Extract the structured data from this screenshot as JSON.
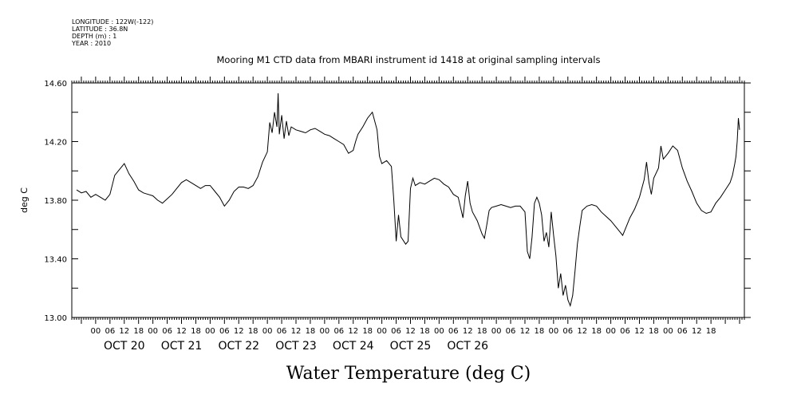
{
  "meta": {
    "longitude": "LONGITUDE : 122W(-122)",
    "latitude": "LATITUDE : 36.8N",
    "depth": "DEPTH (m) : 1",
    "year": "YEAR : 2010"
  },
  "chart_data": {
    "type": "line",
    "title": "Mooring M1 CTD data from MBARI instrument id 1418 at original sampling intervals",
    "xlabel": "Water Temperature (deg C)",
    "ylabel": "deg C",
    "ylim": [
      13.0,
      14.6
    ],
    "xlim": [
      -10,
      272
    ],
    "y_ticks": [
      "13.00",
      "13.40",
      "13.80",
      "14.20",
      "14.60"
    ],
    "x_tick_labels": [
      "00",
      "06",
      "12",
      "18",
      "00",
      "06",
      "12",
      "18",
      "00",
      "06",
      "12",
      "18",
      "00",
      "06",
      "12",
      "18",
      "00",
      "06",
      "12",
      "18",
      "00",
      "06",
      "12",
      "18",
      "00",
      "06",
      "12",
      "18",
      "00",
      "06",
      "12",
      "18",
      "00",
      "06",
      "12",
      "18",
      "00",
      "06",
      "12",
      "18",
      "00",
      "06",
      "12",
      "18"
    ],
    "x_tick_hours": [
      0,
      6,
      12,
      18,
      24,
      30,
      36,
      42,
      48,
      54,
      60,
      66,
      72,
      78,
      84,
      90,
      96,
      102,
      108,
      114,
      120,
      126,
      132,
      138,
      144,
      150,
      156,
      162,
      168,
      174,
      180,
      186,
      192,
      198,
      204,
      210,
      216,
      222,
      228,
      234,
      240,
      246,
      252,
      258
    ],
    "dates": [
      "OCT 20",
      "OCT 21",
      "OCT 22",
      "OCT 23",
      "OCT 24",
      "OCT 25",
      "OCT 26"
    ],
    "x_unit": "hours since OCT 20 00:00",
    "series": [
      {
        "name": "",
        "points": [
          [
            -8,
            13.87
          ],
          [
            -6,
            13.85
          ],
          [
            -4,
            13.86
          ],
          [
            -2,
            13.82
          ],
          [
            0,
            13.84
          ],
          [
            2,
            13.82
          ],
          [
            4,
            13.8
          ],
          [
            6,
            13.84
          ],
          [
            8,
            13.97
          ],
          [
            10,
            14.01
          ],
          [
            12,
            14.05
          ],
          [
            14,
            13.98
          ],
          [
            16,
            13.93
          ],
          [
            18,
            13.87
          ],
          [
            20,
            13.85
          ],
          [
            22,
            13.84
          ],
          [
            24,
            13.83
          ],
          [
            26,
            13.8
          ],
          [
            28,
            13.78
          ],
          [
            30,
            13.81
          ],
          [
            32,
            13.84
          ],
          [
            34,
            13.88
          ],
          [
            36,
            13.92
          ],
          [
            38,
            13.94
          ],
          [
            40,
            13.92
          ],
          [
            42,
            13.9
          ],
          [
            44,
            13.88
          ],
          [
            46,
            13.9
          ],
          [
            48,
            13.9
          ],
          [
            50,
            13.86
          ],
          [
            52,
            13.82
          ],
          [
            54,
            13.76
          ],
          [
            56,
            13.8
          ],
          [
            58,
            13.86
          ],
          [
            60,
            13.89
          ],
          [
            62,
            13.89
          ],
          [
            64,
            13.88
          ],
          [
            66,
            13.9
          ],
          [
            68,
            13.96
          ],
          [
            70,
            14.06
          ],
          [
            72,
            14.13
          ],
          [
            73,
            14.33
          ],
          [
            74,
            14.26
          ],
          [
            75,
            14.4
          ],
          [
            76,
            14.3
          ],
          [
            76.5,
            14.53
          ],
          [
            77,
            14.25
          ],
          [
            78,
            14.38
          ],
          [
            79,
            14.22
          ],
          [
            80,
            14.34
          ],
          [
            81,
            14.24
          ],
          [
            82,
            14.3
          ],
          [
            84,
            14.28
          ],
          [
            86,
            14.27
          ],
          [
            88,
            14.26
          ],
          [
            90,
            14.28
          ],
          [
            92,
            14.29
          ],
          [
            94,
            14.27
          ],
          [
            96,
            14.25
          ],
          [
            98,
            14.24
          ],
          [
            100,
            14.22
          ],
          [
            102,
            14.2
          ],
          [
            104,
            14.18
          ],
          [
            106,
            14.12
          ],
          [
            108,
            14.14
          ],
          [
            109,
            14.2
          ],
          [
            110,
            14.25
          ],
          [
            112,
            14.3
          ],
          [
            114,
            14.36
          ],
          [
            116,
            14.4
          ],
          [
            118,
            14.28
          ],
          [
            119,
            14.1
          ],
          [
            120,
            14.05
          ],
          [
            122,
            14.07
          ],
          [
            124,
            14.03
          ],
          [
            125,
            13.8
          ],
          [
            126,
            13.52
          ],
          [
            127,
            13.7
          ],
          [
            128,
            13.55
          ],
          [
            130,
            13.5
          ],
          [
            131,
            13.52
          ],
          [
            132,
            13.88
          ],
          [
            133,
            13.95
          ],
          [
            134,
            13.9
          ],
          [
            136,
            13.92
          ],
          [
            138,
            13.91
          ],
          [
            140,
            13.93
          ],
          [
            142,
            13.95
          ],
          [
            144,
            13.94
          ],
          [
            146,
            13.91
          ],
          [
            148,
            13.89
          ],
          [
            150,
            13.84
          ],
          [
            152,
            13.82
          ],
          [
            154,
            13.68
          ],
          [
            155,
            13.83
          ],
          [
            156,
            13.93
          ],
          [
            157,
            13.78
          ],
          [
            158,
            13.72
          ],
          [
            160,
            13.66
          ],
          [
            162,
            13.57
          ],
          [
            163,
            13.54
          ],
          [
            164,
            13.63
          ],
          [
            165,
            13.73
          ],
          [
            166,
            13.75
          ],
          [
            168,
            13.76
          ],
          [
            170,
            13.77
          ],
          [
            172,
            13.76
          ],
          [
            174,
            13.75
          ],
          [
            176,
            13.76
          ],
          [
            178,
            13.76
          ],
          [
            180,
            13.72
          ],
          [
            181,
            13.45
          ],
          [
            182,
            13.4
          ],
          [
            183,
            13.55
          ],
          [
            184,
            13.78
          ],
          [
            185,
            13.82
          ],
          [
            186,
            13.78
          ],
          [
            187,
            13.7
          ],
          [
            188,
            13.52
          ],
          [
            189,
            13.58
          ],
          [
            190,
            13.48
          ],
          [
            191,
            13.72
          ],
          [
            192,
            13.56
          ],
          [
            193,
            13.42
          ],
          [
            194,
            13.2
          ],
          [
            195,
            13.3
          ],
          [
            196,
            13.15
          ],
          [
            197,
            13.22
          ],
          [
            198,
            13.12
          ],
          [
            199,
            13.08
          ],
          [
            200,
            13.15
          ],
          [
            201,
            13.32
          ],
          [
            202,
            13.5
          ],
          [
            203,
            13.62
          ],
          [
            204,
            13.73
          ],
          [
            206,
            13.76
          ],
          [
            208,
            13.77
          ],
          [
            210,
            13.76
          ],
          [
            212,
            13.72
          ],
          [
            214,
            13.69
          ],
          [
            216,
            13.66
          ],
          [
            218,
            13.62
          ],
          [
            220,
            13.58
          ],
          [
            221,
            13.56
          ],
          [
            222,
            13.6
          ],
          [
            224,
            13.68
          ],
          [
            226,
            13.74
          ],
          [
            228,
            13.82
          ],
          [
            230,
            13.94
          ],
          [
            231,
            14.06
          ],
          [
            232,
            13.92
          ],
          [
            233,
            13.84
          ],
          [
            234,
            13.95
          ],
          [
            236,
            14.02
          ],
          [
            237,
            14.17
          ],
          [
            238,
            14.08
          ],
          [
            240,
            14.12
          ],
          [
            242,
            14.17
          ],
          [
            244,
            14.14
          ],
          [
            246,
            14.02
          ],
          [
            248,
            13.93
          ],
          [
            250,
            13.86
          ],
          [
            252,
            13.78
          ],
          [
            254,
            13.73
          ],
          [
            256,
            13.71
          ],
          [
            258,
            13.72
          ],
          [
            260,
            13.78
          ],
          [
            262,
            13.82
          ],
          [
            264,
            13.87
          ],
          [
            266,
            13.92
          ],
          [
            267,
            13.97
          ],
          [
            268,
            14.05
          ],
          [
            268.5,
            14.1
          ],
          [
            269,
            14.2
          ],
          [
            269.5,
            14.36
          ],
          [
            270,
            14.28
          ]
        ]
      }
    ]
  }
}
